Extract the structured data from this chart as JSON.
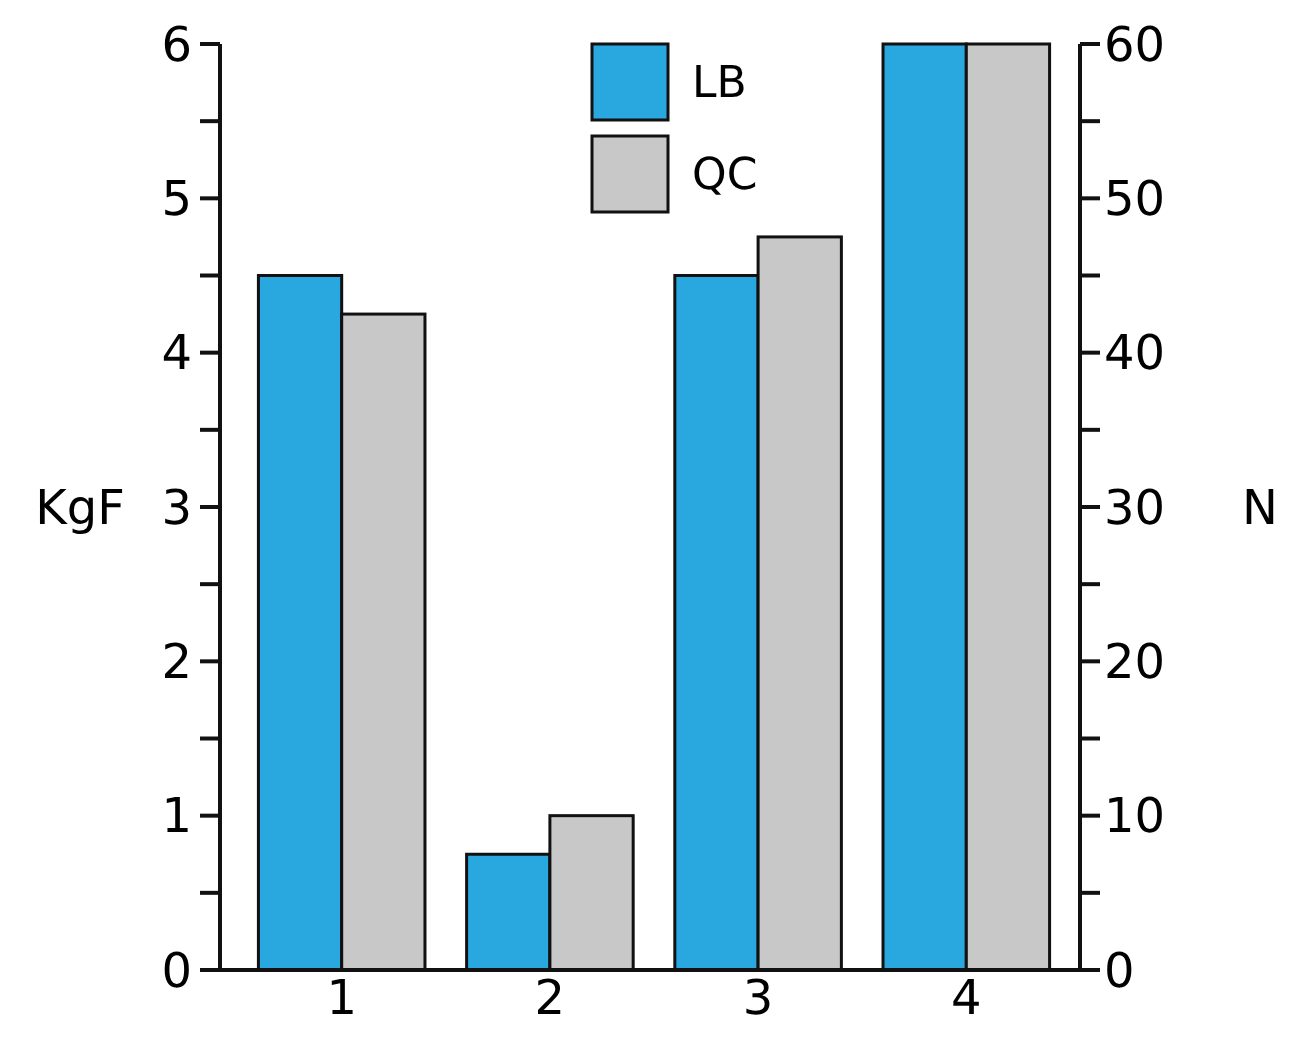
{
  "chart_data": {
    "type": "bar",
    "ylabel": "KgF",
    "y2label": "N",
    "categories": [
      "1",
      "2",
      "3",
      "4"
    ],
    "series": [
      {
        "name": "LB",
        "color": "#29a8e0",
        "values": [
          4.5,
          0.75,
          4.5,
          6
        ]
      },
      {
        "name": "QC",
        "color": "#c8c8c8",
        "values": [
          4.25,
          1.0,
          4.75,
          6
        ]
      }
    ],
    "ylim": [
      0,
      6
    ],
    "yticks": [
      0,
      {
        "value": 0.5,
        "label": null
      },
      1,
      {
        "value": 1.5,
        "label": null
      },
      2,
      {
        "value": 2.5,
        "label": null
      },
      3,
      {
        "value": 3.5,
        "label": null
      },
      4,
      {
        "value": 4.5,
        "label": null
      },
      5,
      {
        "value": 5.5,
        "label": null
      },
      6
    ],
    "y2lim": [
      0,
      60
    ],
    "y2ticks": [
      0,
      {
        "value": 5,
        "label": null
      },
      10,
      {
        "value": 15,
        "label": null
      },
      20,
      {
        "value": 25,
        "label": null
      },
      30,
      {
        "value": 35,
        "label": null
      },
      40,
      {
        "value": 45,
        "label": null
      },
      50,
      {
        "value": 55,
        "label": null
      },
      60
    ],
    "legend": "top",
    "grid": false
  }
}
